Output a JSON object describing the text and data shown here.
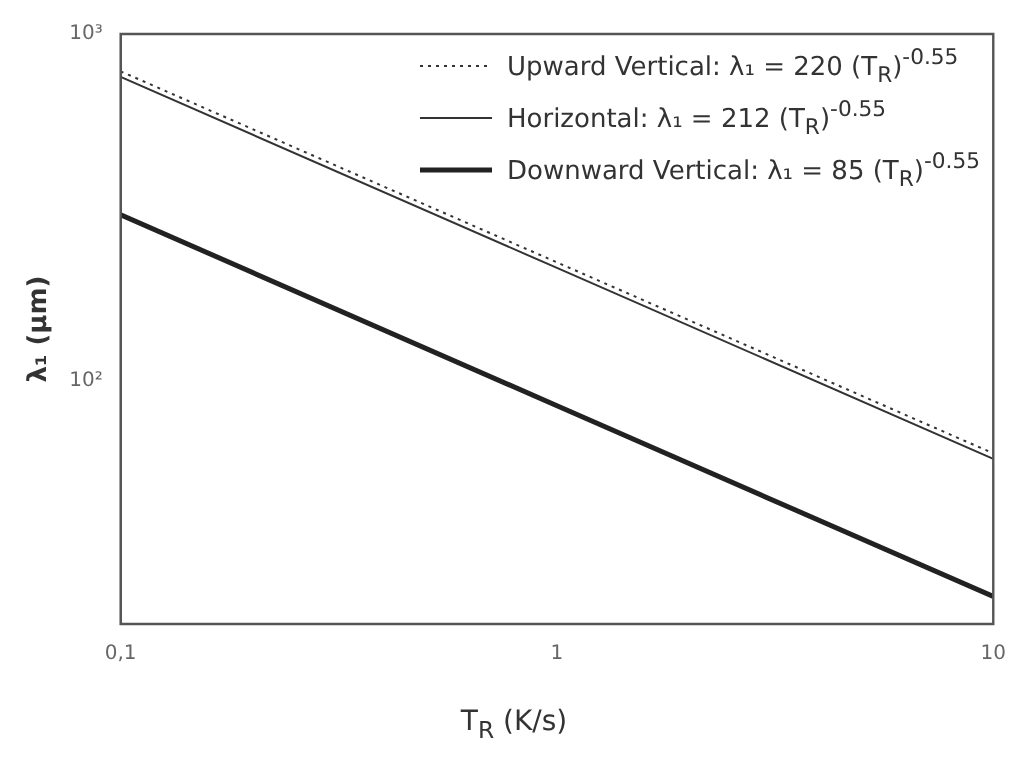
{
  "chart_data": {
    "type": "line",
    "xlabel": "T$_{R}$ (K/s)",
    "ylabel": "λ₁ (µm)",
    "x": [
      0.1,
      1,
      10
    ],
    "series": [
      {
        "name": "Upward Vertical:   λ₁ = 220 (T$_{R}$)$^{-0.55}$",
        "color": "#333333",
        "line_style": "dotted",
        "values": [
          780.6,
          220,
          62.0
        ]
      },
      {
        "name": "Horizontal:  λ₁ = 212 (T$_{R}$)$^{-0.55}$",
        "color": "#333333",
        "line_style": "solid",
        "values": [
          752.2,
          212,
          59.8
        ]
      },
      {
        "name": "Downward Vertical:   λ₁ = 85 (T$_{R}$)$^{-0.55}$",
        "color": "#222222",
        "line_style": "solid",
        "values": [
          301.6,
          85,
          24.0
        ]
      }
    ],
    "log": "xy",
    "xlim": [
      0.1,
      10
    ],
    "xticks": [
      {
        "value": 0.1,
        "label": "0,1"
      },
      1,
      10
    ],
    "ylim": [
      20,
      1000
    ],
    "yticks": [
      {
        "value": 100,
        "label": "10²"
      },
      {
        "value": 1000,
        "label": "10³"
      }
    ],
    "grid": false,
    "legend": "top right",
    "marker": "none"
  }
}
